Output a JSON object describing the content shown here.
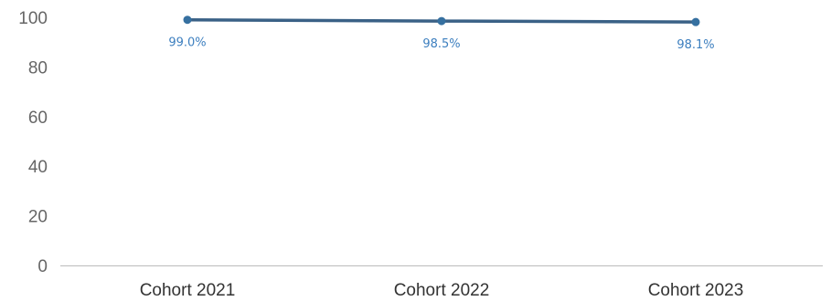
{
  "chart_data": {
    "type": "line",
    "categories": [
      "Cohort 2021",
      "Cohort 2022",
      "Cohort 2023"
    ],
    "series": [
      {
        "values": [
          99.0,
          98.5,
          98.1
        ],
        "data_labels": [
          "99.0%",
          "98.5%",
          "98.1%"
        ]
      }
    ],
    "ylim": [
      0,
      100
    ],
    "yticks": [
      0,
      20,
      40,
      60,
      80,
      100
    ],
    "grid": false,
    "legend": "none"
  },
  "colors": {
    "line": "#3a6186",
    "point": "#3670a0",
    "data_label": "#3d7fbf",
    "axis": "#bbbbbb"
  }
}
